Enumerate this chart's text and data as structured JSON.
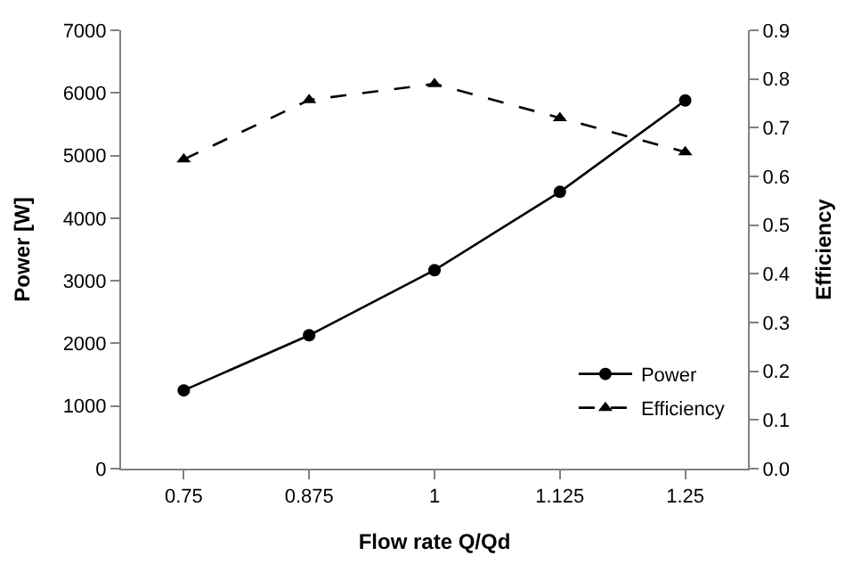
{
  "chart_data": {
    "type": "line",
    "xlabel": "Flow rate Q/Qd",
    "ylabel": "Power [W]",
    "y2label": "Efficiency",
    "categories": [
      "0.75",
      "0.875",
      "1",
      "1.125",
      "1.25"
    ],
    "series": [
      {
        "name": "Power",
        "color": "#000000",
        "values": [
          1250,
          2130,
          3170,
          4420,
          5880
        ],
        "marker": "circle",
        "line_style": "solid"
      },
      {
        "name": "Efficiency",
        "color": "#000000",
        "values": [
          0.635,
          0.757,
          0.79,
          0.72,
          0.65
        ],
        "marker": "triangle",
        "line_style": "dashed",
        "axis": "y2"
      }
    ],
    "ylim": [
      0,
      7000
    ],
    "yticks": [
      0,
      1000,
      2000,
      3000,
      4000,
      5000,
      6000,
      7000
    ],
    "y2lim": [
      0,
      0.9
    ],
    "y2ticks": [
      {
        "value": 0,
        "label": "0.0"
      },
      0.1,
      0.2,
      0.3,
      0.4,
      0.5,
      0.6,
      0.7,
      0.8,
      0.9
    ],
    "legend": "bottom right"
  }
}
